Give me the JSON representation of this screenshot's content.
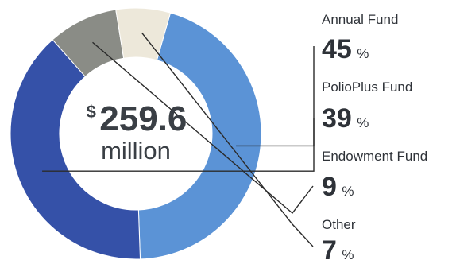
{
  "chart_data": {
    "type": "pie",
    "total": {
      "currency": "$",
      "amount": "259.6",
      "unit": "million"
    },
    "slices": [
      {
        "label": "Annual Fund",
        "value": 45,
        "value_text": "45",
        "suffix": "%",
        "color": "#5b93d6"
      },
      {
        "label": "PolioPlus Fund",
        "value": 39,
        "value_text": "39",
        "suffix": "%",
        "color": "#3551a8"
      },
      {
        "label": "Endowment Fund",
        "value": 9,
        "value_text": "9",
        "suffix": "%",
        "color": "#8a8c86"
      },
      {
        "label": "Other",
        "value": 7,
        "value_text": "7",
        "suffix": "%",
        "color": "#ede8da"
      }
    ]
  }
}
